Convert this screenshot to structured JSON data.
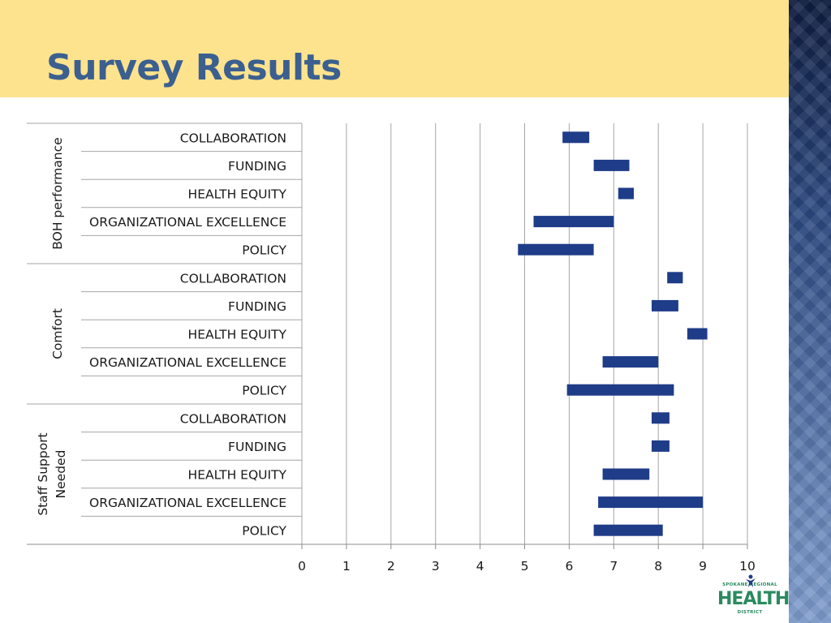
{
  "slide": {
    "title": "Survey Results"
  },
  "logo": {
    "line1": "SPOKANE REGIONAL",
    "line2": "HEALTH",
    "line3": "DISTRICT"
  },
  "colors": {
    "bar": "#1f3c88",
    "header": "#fde38e",
    "title": "#3b5f8f"
  },
  "chart_data": {
    "type": "bar",
    "orientation": "horizontal-floating-range",
    "title": "",
    "xlabel": "",
    "ylabel": "",
    "xlim": [
      0,
      10
    ],
    "x_ticks": [
      "0",
      "1",
      "2",
      "3",
      "4",
      "5",
      "6",
      "7",
      "8",
      "9",
      "10"
    ],
    "grid": "vertical",
    "groups": [
      {
        "name": "BOH performance",
        "items": [
          {
            "label": "COLLABORATION",
            "start": 5.85,
            "end": 6.45
          },
          {
            "label": "FUNDING",
            "start": 6.55,
            "end": 7.35
          },
          {
            "label": "HEALTH EQUITY",
            "start": 7.1,
            "end": 7.45
          },
          {
            "label": "ORGANIZATIONAL EXCELLENCE",
            "start": 5.2,
            "end": 7.0
          },
          {
            "label": "POLICY",
            "start": 4.85,
            "end": 6.55
          }
        ]
      },
      {
        "name": "Comfort",
        "items": [
          {
            "label": "COLLABORATION",
            "start": 8.2,
            "end": 8.55
          },
          {
            "label": "FUNDING",
            "start": 7.85,
            "end": 8.45
          },
          {
            "label": "HEALTH EQUITY",
            "start": 8.65,
            "end": 9.1
          },
          {
            "label": "ORGANIZATIONAL EXCELLENCE",
            "start": 6.75,
            "end": 8.0
          },
          {
            "label": "POLICY",
            "start": 5.95,
            "end": 8.35
          }
        ]
      },
      {
        "name": "Staff Support Needed",
        "items": [
          {
            "label": "COLLABORATION",
            "start": 7.85,
            "end": 8.25
          },
          {
            "label": "FUNDING",
            "start": 7.85,
            "end": 8.25
          },
          {
            "label": "HEALTH EQUITY",
            "start": 6.75,
            "end": 7.8
          },
          {
            "label": "ORGANIZATIONAL EXCELLENCE",
            "start": 6.65,
            "end": 9.0
          },
          {
            "label": "POLICY",
            "start": 6.55,
            "end": 8.1
          }
        ]
      }
    ]
  }
}
